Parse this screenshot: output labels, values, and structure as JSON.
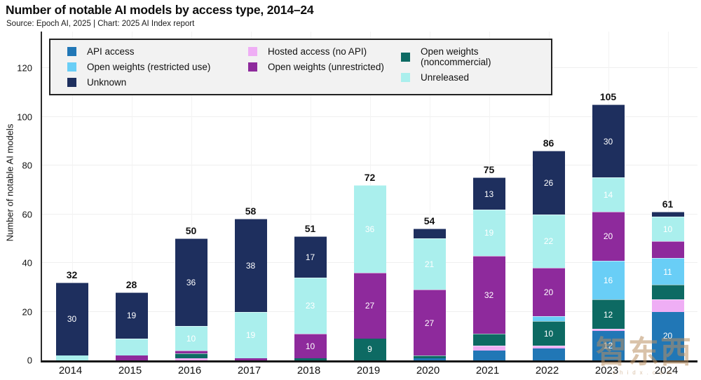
{
  "title": "Number of notable AI models by access type, 2014–24",
  "source": "Source: Epoch AI, 2025 | Chart: 2025 AI Index report",
  "watermark": {
    "text": "智东西",
    "subtext": "zhidx.com"
  },
  "colors": {
    "api": "#2177b6",
    "hosted": "#efaef5",
    "noncommercial": "#0d6a63",
    "restricted": "#69cef6",
    "unrestricted": "#8e2a9c",
    "unreleased": "#aaefed",
    "unknown": "#1e2f5e"
  },
  "legend": {
    "columns": [
      [
        {
          "key": "api",
          "label": "API access"
        },
        {
          "key": "restricted",
          "label": "Open weights (restricted use)"
        },
        {
          "key": "unknown",
          "label": "Unknown"
        }
      ],
      [
        {
          "key": "hosted",
          "label": "Hosted access (no API)"
        },
        {
          "key": "unrestricted",
          "label": "Open weights (unrestricted)"
        }
      ],
      [
        {
          "key": "noncommercial",
          "label": "Open weights (noncommercial)"
        },
        {
          "key": "unreleased",
          "label": "Unreleased"
        }
      ]
    ]
  },
  "chart_data": {
    "type": "bar",
    "stacked": true,
    "title": "Number of notable AI models by access type, 2014–24",
    "xlabel": "",
    "ylabel": "Number of notable AI models",
    "categories": [
      "2014",
      "2015",
      "2016",
      "2017",
      "2018",
      "2019",
      "2020",
      "2021",
      "2022",
      "2023",
      "2024"
    ],
    "series": [
      {
        "key": "api",
        "name": "API access",
        "values": [
          0,
          0,
          0,
          0,
          0,
          0,
          1,
          4,
          5,
          12,
          20
        ]
      },
      {
        "key": "hosted",
        "name": "Hosted access (no API)",
        "values": [
          0,
          0,
          1,
          0,
          0,
          0,
          0,
          2,
          1,
          1,
          5
        ]
      },
      {
        "key": "noncommercial",
        "name": "Open weights (noncommercial)",
        "values": [
          0,
          0,
          2,
          0,
          1,
          9,
          1,
          5,
          10,
          12,
          6
        ]
      },
      {
        "key": "restricted",
        "name": "Open weights (restricted use)",
        "values": [
          0,
          0,
          0,
          0,
          0,
          0,
          0,
          0,
          2,
          16,
          11
        ]
      },
      {
        "key": "unrestricted",
        "name": "Open weights (unrestricted)",
        "values": [
          0,
          2,
          1,
          1,
          10,
          27,
          27,
          32,
          20,
          20,
          7
        ]
      },
      {
        "key": "unreleased",
        "name": "Unreleased",
        "values": [
          2,
          7,
          10,
          19,
          23,
          36,
          21,
          19,
          22,
          14,
          10
        ]
      },
      {
        "key": "unknown",
        "name": "Unknown",
        "values": [
          30,
          19,
          36,
          38,
          17,
          0,
          4,
          13,
          26,
          30,
          2
        ]
      }
    ],
    "totals": [
      32,
      28,
      50,
      58,
      51,
      72,
      54,
      75,
      86,
      105,
      61
    ],
    "yticks": [
      0,
      20,
      40,
      60,
      80,
      100,
      120
    ],
    "ylim": [
      0,
      135
    ],
    "grid": true,
    "legend_position": "top-left",
    "label_min_value": 9
  }
}
